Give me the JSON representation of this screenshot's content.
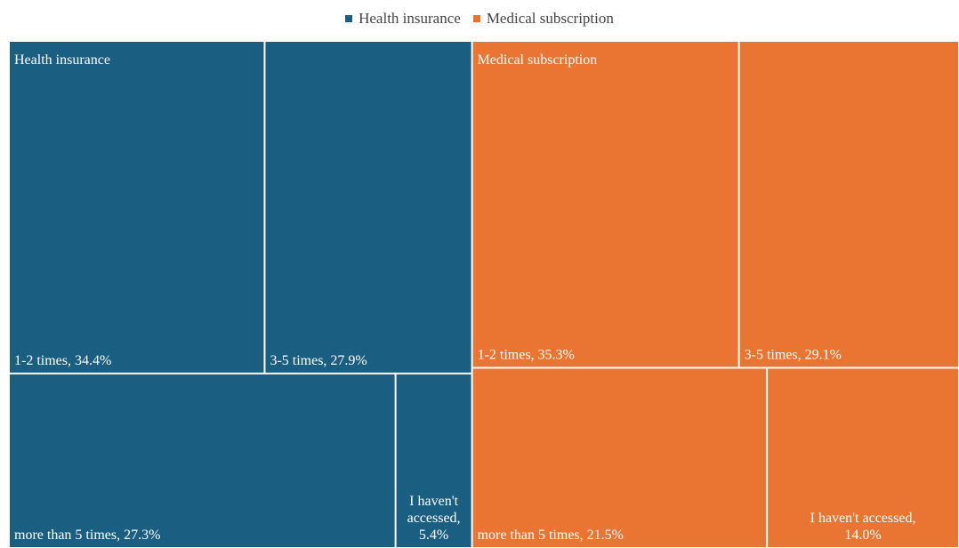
{
  "chart_data": {
    "type": "treemap",
    "legend": {
      "placement": "top-center",
      "items": [
        {
          "label": "Health insurance",
          "color": "#1a5e82"
        },
        {
          "label": "Medical subscription",
          "color": "#ea7432"
        }
      ]
    },
    "groups": [
      {
        "name": "Health insurance",
        "color": "#1a5e82",
        "children": [
          {
            "label": "1-2 times, 34.4%",
            "value": 34.4
          },
          {
            "label": "3-5 times, 27.9%",
            "value": 27.9
          },
          {
            "label": "more than 5 times, 27.3%",
            "value": 27.3
          },
          {
            "label": "I haven't accessed, 5.4%",
            "value": 5.4,
            "lines": [
              "I haven't",
              "accessed,",
              "5.4%"
            ]
          }
        ]
      },
      {
        "name": "Medical subscription",
        "color": "#ea7432",
        "children": [
          {
            "label": "1-2 times, 35.3%",
            "value": 35.3
          },
          {
            "label": "3-5 times, 29.1%",
            "value": 29.1
          },
          {
            "label": "more than 5 times, 21.5%",
            "value": 21.5
          },
          {
            "label": "I haven't accessed, 14.0%",
            "value": 14.0,
            "lines": [
              "I haven't accessed,",
              "14.0%"
            ]
          }
        ]
      }
    ]
  }
}
